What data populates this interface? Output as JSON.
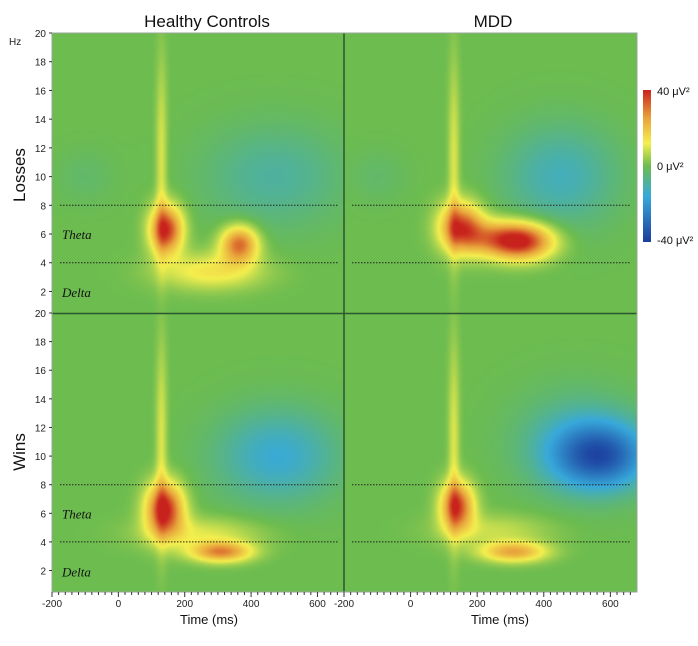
{
  "chart_data": {
    "type": "heatmap",
    "columns": [
      "Healthy Controls",
      "MDD"
    ],
    "rows": [
      "Losses",
      "Wins"
    ],
    "y_unit_label": "Hz",
    "xlabel": "Time (ms)",
    "xlim": [
      -200,
      680
    ],
    "ylim": [
      0.5,
      20
    ],
    "x_ticks": [
      "-200",
      "0",
      "200",
      "400",
      "600"
    ],
    "y_ticks": [
      "2",
      "4",
      "6",
      "8",
      "10",
      "12",
      "14",
      "16",
      "18",
      "20"
    ],
    "bands": [
      {
        "label": "Theta",
        "low": 4,
        "high": 8
      },
      {
        "label": "Delta",
        "low": 0.5,
        "high": 4
      }
    ],
    "colorbar": {
      "min_label": "-40 μV²",
      "mid_label": "0 μV²",
      "max_label": "40 μV²",
      "min": -40,
      "max": 40,
      "colors": [
        "#1b3c9c",
        "#38a9db",
        "#6cbc4f",
        "#f4ef4e",
        "#e8a13b",
        "#c8221d"
      ]
    },
    "panels": [
      {
        "row": "Losses",
        "column": "Healthy Controls",
        "blobs": [
          {
            "t": 130,
            "f": 11,
            "st": 12,
            "sf": 5,
            "a": 10
          },
          {
            "t": 145,
            "f": 6.3,
            "st": 35,
            "sf": 1.2,
            "a": 38
          },
          {
            "t": 365,
            "f": 5.3,
            "st": 40,
            "sf": 0.9,
            "a": 32
          },
          {
            "t": 280,
            "f": 3.4,
            "st": 110,
            "sf": 0.9,
            "a": 14
          },
          {
            "t": 470,
            "f": 10,
            "st": 150,
            "sf": 2.5,
            "a": -9
          },
          {
            "t": -100,
            "f": 10,
            "st": 60,
            "sf": 1.3,
            "a": -3
          }
        ]
      },
      {
        "row": "Losses",
        "column": "MDD",
        "blobs": [
          {
            "t": 130,
            "f": 11,
            "st": 12,
            "sf": 5,
            "a": 10
          },
          {
            "t": 150,
            "f": 6.5,
            "st": 45,
            "sf": 1.2,
            "a": 34
          },
          {
            "t": 330,
            "f": 5.5,
            "st": 70,
            "sf": 0.9,
            "a": 42
          },
          {
            "t": 230,
            "f": 5.8,
            "st": 60,
            "sf": 0.9,
            "a": 14
          },
          {
            "t": 450,
            "f": 10,
            "st": 120,
            "sf": 2.5,
            "a": -12
          },
          {
            "t": -100,
            "f": 10,
            "st": 60,
            "sf": 1.3,
            "a": -3
          }
        ]
      },
      {
        "row": "Wins",
        "column": "Healthy Controls",
        "blobs": [
          {
            "t": 130,
            "f": 11,
            "st": 12,
            "sf": 5,
            "a": 10
          },
          {
            "t": 140,
            "f": 6.3,
            "st": 40,
            "sf": 1.3,
            "a": 40
          },
          {
            "t": 310,
            "f": 3.3,
            "st": 65,
            "sf": 0.5,
            "a": 28
          },
          {
            "t": 250,
            "f": 4.6,
            "st": 130,
            "sf": 0.8,
            "a": 10
          },
          {
            "t": 480,
            "f": 10,
            "st": 130,
            "sf": 2.3,
            "a": -15
          }
        ]
      },
      {
        "row": "Wins",
        "column": "MDD",
        "blobs": [
          {
            "t": 130,
            "f": 11,
            "st": 12,
            "sf": 5,
            "a": 10
          },
          {
            "t": 140,
            "f": 6.5,
            "st": 35,
            "sf": 1.2,
            "a": 36
          },
          {
            "t": 310,
            "f": 3.3,
            "st": 70,
            "sf": 0.5,
            "a": 24
          },
          {
            "t": 250,
            "f": 4.8,
            "st": 120,
            "sf": 0.8,
            "a": 8
          },
          {
            "t": 570,
            "f": 10,
            "st": 100,
            "sf": 1.6,
            "a": -30
          },
          {
            "t": 500,
            "f": 11,
            "st": 130,
            "sf": 2.5,
            "a": -10
          }
        ]
      }
    ]
  }
}
